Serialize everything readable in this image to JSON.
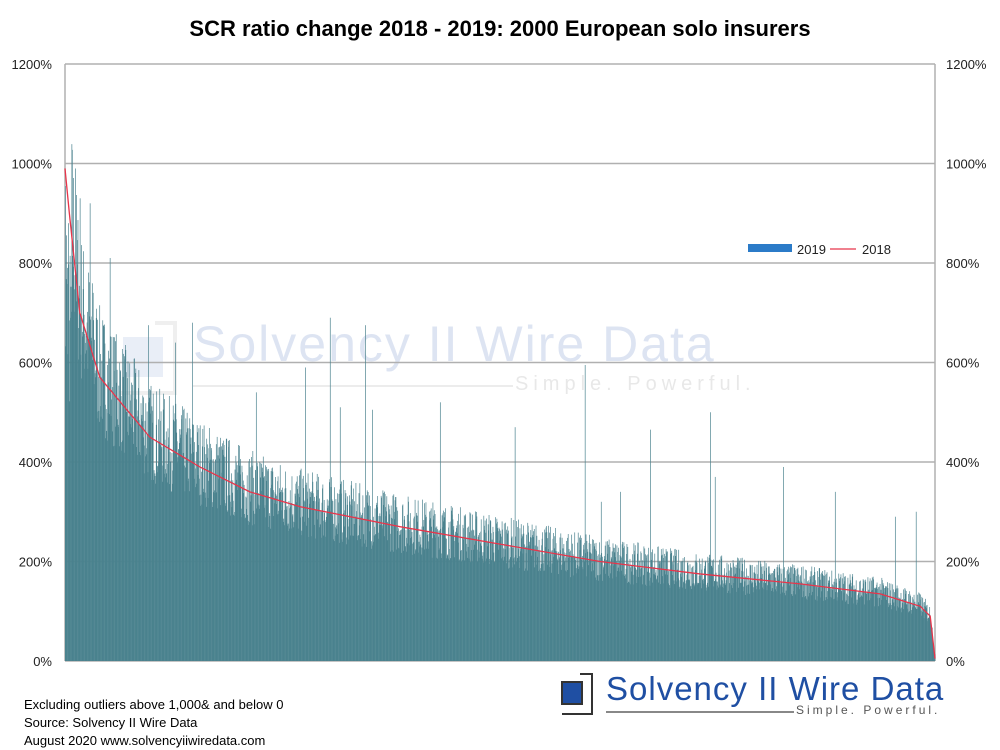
{
  "chart_data": {
    "type": "bar+line",
    "title": "SCR ratio change 2018 - 2019: 2000 European solo insurers",
    "y_ticks": [
      "0%",
      "200%",
      "400%",
      "600%",
      "800%",
      "1000%",
      "1200%"
    ],
    "ylim": [
      0,
      12
    ],
    "y_unit": "ratio (1 = 100%)",
    "grid": true,
    "legend_position": "right-middle",
    "n_insurers": 2000,
    "series": [
      {
        "name": "2019",
        "type": "bar",
        "color": "#4a828e",
        "legend_color": "#2b7bc8",
        "note": "per-insurer bars fluctuate around the 2018 line; notable spikes listed",
        "spikes": [
          [
            7,
            8.8
          ],
          [
            23,
            9.9
          ],
          [
            34,
            9.3
          ],
          [
            57,
            9.2
          ],
          [
            64,
            7.4
          ],
          [
            103,
            8.1
          ],
          [
            191,
            6.75
          ],
          [
            253,
            6.4
          ],
          [
            292,
            6.8
          ],
          [
            439,
            5.4
          ],
          [
            552,
            5.9
          ],
          [
            609,
            6.9
          ],
          [
            632,
            5.1
          ],
          [
            690,
            6.75
          ],
          [
            706,
            5.05
          ],
          [
            862,
            5.2
          ],
          [
            1034,
            4.7
          ],
          [
            1195,
            5.95
          ],
          [
            1232,
            3.2
          ],
          [
            1276,
            3.4
          ],
          [
            1345,
            4.65
          ],
          [
            1483,
            5.0
          ],
          [
            1494,
            3.7
          ],
          [
            1651,
            3.9
          ],
          [
            1770,
            3.4
          ],
          [
            1908,
            2.9
          ],
          [
            1956,
            3.0
          ]
        ]
      },
      {
        "name": "2018",
        "type": "line",
        "color": "#e8344a",
        "points": [
          [
            0,
            9.9
          ],
          [
            10,
            9.0
          ],
          [
            34,
            7.0
          ],
          [
            80,
            5.7
          ],
          [
            195,
            4.5
          ],
          [
            310,
            3.9
          ],
          [
            425,
            3.4
          ],
          [
            541,
            3.1
          ],
          [
            770,
            2.7
          ],
          [
            1000,
            2.35
          ],
          [
            1230,
            2.0
          ],
          [
            1460,
            1.75
          ],
          [
            1690,
            1.55
          ],
          [
            1874,
            1.35
          ],
          [
            1966,
            1.1
          ],
          [
            1989,
            0.9
          ],
          [
            2000,
            0.05
          ]
        ]
      }
    ]
  },
  "legend": {
    "s2019": "2019",
    "s2018": "2018"
  },
  "notes": [
    "Excluding outliers above 1,000& and below 0",
    "Source: Solvency II Wire Data",
    "August 2020   www.solvencyiiwiredata.com"
  ],
  "logo": {
    "name": "Solvency II Wire Data",
    "tagline": "Simple. Powerful."
  }
}
